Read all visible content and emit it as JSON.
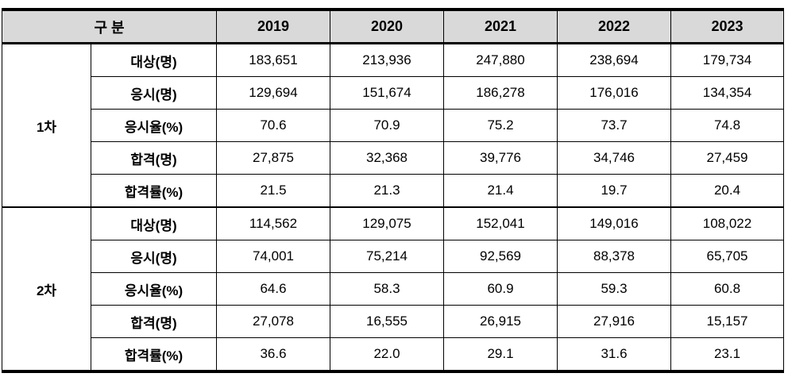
{
  "table": {
    "group_header": "구 분",
    "years": [
      "2019",
      "2020",
      "2021",
      "2022",
      "2023"
    ],
    "sections": [
      {
        "name": "1차",
        "rows": [
          {
            "label": "대상(명)",
            "values": [
              "183,651",
              "213,936",
              "247,880",
              "238,694",
              "179,734"
            ]
          },
          {
            "label": "응시(명)",
            "values": [
              "129,694",
              "151,674",
              "186,278",
              "176,016",
              "134,354"
            ]
          },
          {
            "label": "응시율(%)",
            "values": [
              "70.6",
              "70.9",
              "75.2",
              "73.7",
              "74.8"
            ]
          },
          {
            "label": "합격(명)",
            "values": [
              "27,875",
              "32,368",
              "39,776",
              "34,746",
              "27,459"
            ]
          },
          {
            "label": "합격률(%)",
            "values": [
              "21.5",
              "21.3",
              "21.4",
              "19.7",
              "20.4"
            ]
          }
        ]
      },
      {
        "name": "2차",
        "rows": [
          {
            "label": "대상(명)",
            "values": [
              "114,562",
              "129,075",
              "152,041",
              "149,016",
              "108,022"
            ]
          },
          {
            "label": "응시(명)",
            "values": [
              "74,001",
              "75,214",
              "92,569",
              "88,378",
              "65,705"
            ]
          },
          {
            "label": "응시율(%)",
            "values": [
              "64.6",
              "58.3",
              "60.9",
              "59.3",
              "60.8"
            ]
          },
          {
            "label": "합격(명)",
            "values": [
              "27,078",
              "16,555",
              "26,915",
              "27,916",
              "15,157"
            ]
          },
          {
            "label": "합격률(%)",
            "values": [
              "36.6",
              "22.0",
              "29.1",
              "31.6",
              "23.1"
            ]
          }
        ]
      }
    ],
    "colors": {
      "header_bg": "#d9d9d9",
      "border": "#000000",
      "text": "#000000"
    }
  },
  "chart_data": {
    "type": "table",
    "title": "",
    "columns": [
      "구 분",
      "",
      "2019",
      "2020",
      "2021",
      "2022",
      "2023"
    ],
    "rows": [
      [
        "1차",
        "대상(명)",
        183651,
        213936,
        247880,
        238694,
        179734
      ],
      [
        "1차",
        "응시(명)",
        129694,
        151674,
        186278,
        176016,
        134354
      ],
      [
        "1차",
        "응시율(%)",
        70.6,
        70.9,
        75.2,
        73.7,
        74.8
      ],
      [
        "1차",
        "합격(명)",
        27875,
        32368,
        39776,
        34746,
        27459
      ],
      [
        "1차",
        "합격률(%)",
        21.5,
        21.3,
        21.4,
        19.7,
        20.4
      ],
      [
        "2차",
        "대상(명)",
        114562,
        129075,
        152041,
        149016,
        108022
      ],
      [
        "2차",
        "응시(명)",
        74001,
        75214,
        92569,
        88378,
        65705
      ],
      [
        "2차",
        "응시율(%)",
        64.6,
        58.3,
        60.9,
        59.3,
        60.8
      ],
      [
        "2차",
        "합격(명)",
        27078,
        16555,
        26915,
        27916,
        15157
      ],
      [
        "2차",
        "합격률(%)",
        36.6,
        22.0,
        29.1,
        31.6,
        23.1
      ]
    ],
    "layout": {
      "header_row_shaded": true,
      "grid": true
    }
  }
}
